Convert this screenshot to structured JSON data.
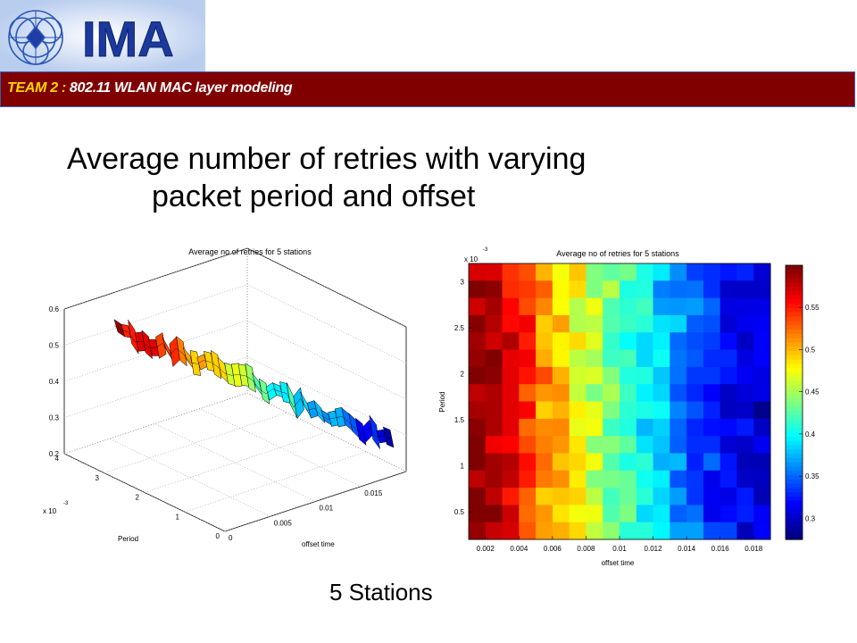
{
  "logo": {
    "text": "IMA"
  },
  "banner": {
    "team": "TEAM 2",
    "separator": ":",
    "topic": "802.11 WLAN MAC layer modeling"
  },
  "slide": {
    "title_line1": "Average number of retries with varying",
    "title_line2": "packet period and offset",
    "subtitle": "5 Stations"
  },
  "colors": {
    "banner_bg": "#800000",
    "banner_border": "#3b5bb5",
    "team_text": "#ffd800"
  },
  "chart_data": [
    {
      "type": "surface3d",
      "title": "Average no of retries for 5 stations",
      "xlabel": "offset time",
      "ylabel": "Period",
      "y_exponent": "x 10",
      "y_exponent_power": "-3",
      "x_ticks": [
        "0",
        "0.005",
        "0.01",
        "0.015"
      ],
      "y_ticks": [
        "0",
        "1",
        "2",
        "3",
        "4"
      ],
      "z_ticks": [
        "0.2",
        "0.3",
        "0.4",
        "0.5",
        "0.6"
      ],
      "zlim": [
        0.2,
        0.6
      ],
      "grid": true,
      "ridge": {
        "offset": [
          0.001,
          0.003,
          0.005,
          0.007,
          0.009,
          0.011,
          0.013,
          0.015,
          0.017,
          0.019
        ],
        "value": [
          0.56,
          0.53,
          0.5,
          0.47,
          0.44,
          0.41,
          0.38,
          0.35,
          0.33,
          0.3
        ]
      }
    },
    {
      "type": "heatmap",
      "title": "Average no of retries for 5 stations",
      "xlabel": "offset time",
      "ylabel": "Period",
      "y_exponent": "x 10",
      "y_exponent_power": "-3",
      "x_ticks": [
        "0.002",
        "0.004",
        "0.006",
        "0.008",
        "0.01",
        "0.012",
        "0.014",
        "0.016",
        "0.018"
      ],
      "y_ticks": [
        "0.5",
        "1",
        "1.5",
        "2",
        "2.5",
        "3"
      ],
      "colorbar_ticks": [
        "0.55",
        "0.5",
        "0.45",
        "0.4",
        "0.35",
        "0.3"
      ],
      "clim": [
        0.275,
        0.6
      ],
      "x_range": [
        0.001,
        0.019
      ],
      "y_range": [
        0.0002,
        0.0032
      ],
      "column_means": [
        0.595,
        0.585,
        0.565,
        0.545,
        0.515,
        0.495,
        0.475,
        0.455,
        0.435,
        0.415,
        0.395,
        0.378,
        0.362,
        0.345,
        0.33,
        0.317,
        0.305,
        0.293
      ]
    }
  ]
}
